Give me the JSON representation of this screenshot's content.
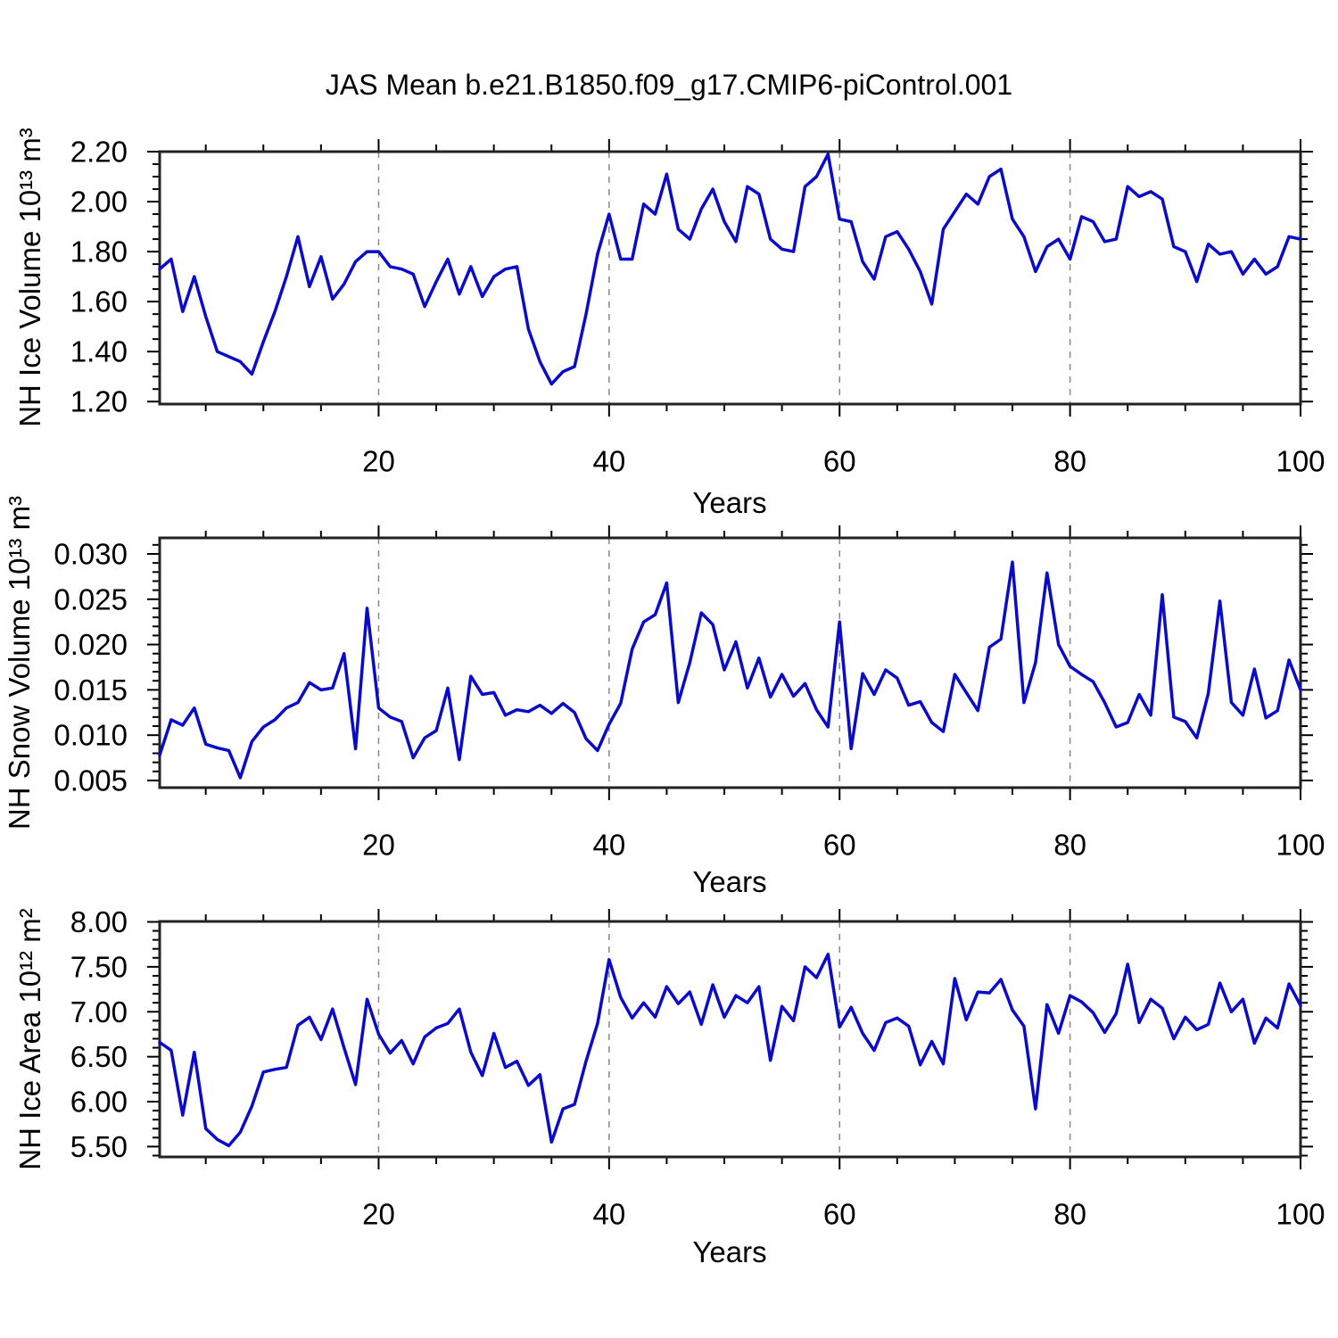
{
  "title": "JAS Mean b.e21.B1850.f09_g17.CMIP6-piControl.001",
  "line_color": "#0a0acd",
  "frame_color": "#222222",
  "gridline_color": "#888888",
  "chart_data": [
    {
      "id": "nh-ice-volume",
      "type": "line",
      "ylabel": "NH Ice Volume 10¹³ m³",
      "xlabel": "Years",
      "x": {
        "start": 1,
        "end": 100,
        "step": 1
      },
      "xlim": [
        1,
        100
      ],
      "ylim": [
        1.19,
        2.2
      ],
      "yticks": [
        1.2,
        1.4,
        1.6,
        1.8,
        2.0,
        2.2
      ],
      "ytick_labels": [
        "1.20",
        "1.40",
        "1.60",
        "1.80",
        "2.00",
        "2.20"
      ],
      "ytick_minor_step": 0.05,
      "xticks": [
        20,
        40,
        60,
        80,
        100
      ],
      "xtick_minor_step": 5,
      "gridlines_x": [
        20,
        40,
        60,
        80
      ],
      "grid": true,
      "legend": "none",
      "values": [
        1.73,
        1.77,
        1.56,
        1.7,
        1.54,
        1.4,
        1.38,
        1.36,
        1.31,
        1.44,
        1.56,
        1.7,
        1.86,
        1.66,
        1.78,
        1.61,
        1.67,
        1.76,
        1.8,
        1.8,
        1.74,
        1.73,
        1.71,
        1.58,
        1.68,
        1.77,
        1.63,
        1.74,
        1.62,
        1.7,
        1.73,
        1.74,
        1.49,
        1.36,
        1.27,
        1.32,
        1.34,
        1.55,
        1.79,
        1.95,
        1.77,
        1.77,
        1.99,
        1.95,
        2.11,
        1.89,
        1.85,
        1.97,
        2.05,
        1.92,
        1.84,
        2.06,
        2.03,
        1.85,
        1.81,
        1.8,
        2.06,
        2.1,
        2.19,
        1.93,
        1.92,
        1.76,
        1.69,
        1.86,
        1.88,
        1.81,
        1.72,
        1.59,
        1.89,
        1.96,
        2.03,
        1.99,
        2.1,
        2.13,
        1.93,
        1.86,
        1.72,
        1.82,
        1.85,
        1.77,
        1.94,
        1.92,
        1.84,
        1.85,
        2.06,
        2.02,
        2.04,
        2.01,
        1.82,
        1.8,
        1.68,
        1.83,
        1.79,
        1.8,
        1.71,
        1.77,
        1.71,
        1.74,
        1.86,
        1.85
      ]
    },
    {
      "id": "nh-snow-volume",
      "type": "line",
      "ylabel": "NH Snow Volume 10¹³ m³",
      "xlabel": "Years",
      "x": {
        "start": 1,
        "end": 100,
        "step": 1
      },
      "xlim": [
        1,
        100
      ],
      "ylim": [
        0.00421,
        0.03177
      ],
      "yticks": [
        0.005,
        0.01,
        0.015,
        0.02,
        0.025,
        0.03
      ],
      "ytick_labels": [
        "0.005",
        "0.010",
        "0.015",
        "0.020",
        "0.025",
        "0.030"
      ],
      "ytick_minor_step": 0.001,
      "xticks": [
        20,
        40,
        60,
        80,
        100
      ],
      "xtick_minor_step": 5,
      "gridlines_x": [
        20,
        40,
        60,
        80
      ],
      "grid": true,
      "legend": "none",
      "values": [
        0.0078,
        0.0117,
        0.0111,
        0.013,
        0.009,
        0.0086,
        0.0083,
        0.0053,
        0.0093,
        0.0109,
        0.0117,
        0.013,
        0.0136,
        0.0158,
        0.015,
        0.0152,
        0.019,
        0.0085,
        0.024,
        0.013,
        0.012,
        0.0115,
        0.0075,
        0.0097,
        0.0105,
        0.0152,
        0.0073,
        0.0165,
        0.0145,
        0.0147,
        0.0122,
        0.0128,
        0.0126,
        0.0133,
        0.0124,
        0.0135,
        0.0125,
        0.0096,
        0.0083,
        0.0112,
        0.0135,
        0.0195,
        0.0225,
        0.0233,
        0.0268,
        0.0136,
        0.018,
        0.0235,
        0.0222,
        0.0172,
        0.0203,
        0.0152,
        0.0185,
        0.0142,
        0.0167,
        0.0143,
        0.0157,
        0.0128,
        0.0109,
        0.0225,
        0.0085,
        0.0168,
        0.0145,
        0.0172,
        0.0163,
        0.0133,
        0.0137,
        0.0114,
        0.0104,
        0.0167,
        0.0147,
        0.0127,
        0.0197,
        0.0206,
        0.0291,
        0.0136,
        0.018,
        0.0279,
        0.02,
        0.0176,
        0.0167,
        0.0159,
        0.0136,
        0.0109,
        0.0114,
        0.0145,
        0.0122,
        0.0255,
        0.012,
        0.0115,
        0.0097,
        0.0146,
        0.0248,
        0.0136,
        0.0122,
        0.0173,
        0.0119,
        0.0127,
        0.0183,
        0.015
      ]
    },
    {
      "id": "nh-ice-area",
      "type": "line",
      "ylabel": "NH Ice Area 10¹² m²",
      "xlabel": "Years",
      "x": {
        "start": 1,
        "end": 100,
        "step": 1
      },
      "xlim": [
        1,
        100
      ],
      "ylim": [
        5.385,
        8.005
      ],
      "yticks": [
        5.5,
        6.0,
        6.5,
        7.0,
        7.5,
        8.0
      ],
      "ytick_labels": [
        "5.50",
        "6.00",
        "6.50",
        "7.00",
        "7.50",
        "8.00"
      ],
      "ytick_minor_step": 0.1,
      "xticks": [
        20,
        40,
        60,
        80,
        100
      ],
      "xtick_minor_step": 5,
      "gridlines_x": [
        20,
        40,
        60,
        80
      ],
      "grid": true,
      "legend": "none",
      "values": [
        6.66,
        6.57,
        5.85,
        6.55,
        5.7,
        5.58,
        5.51,
        5.66,
        5.95,
        6.33,
        6.36,
        6.38,
        6.85,
        6.94,
        6.69,
        7.03,
        6.6,
        6.19,
        7.14,
        6.75,
        6.54,
        6.68,
        6.42,
        6.72,
        6.82,
        6.87,
        7.03,
        6.55,
        6.29,
        6.76,
        6.38,
        6.45,
        6.18,
        6.3,
        5.55,
        5.92,
        5.97,
        6.45,
        6.87,
        7.58,
        7.16,
        6.93,
        7.1,
        6.94,
        7.28,
        7.09,
        7.22,
        6.86,
        7.3,
        6.94,
        7.18,
        7.1,
        7.28,
        6.46,
        7.06,
        6.9,
        7.5,
        7.38,
        7.64,
        6.83,
        7.05,
        6.76,
        6.57,
        6.88,
        6.93,
        6.84,
        6.41,
        6.67,
        6.42,
        7.37,
        6.91,
        7.22,
        7.21,
        7.36,
        7.02,
        6.84,
        5.92,
        7.08,
        6.76,
        7.18,
        7.11,
        6.99,
        6.77,
        6.98,
        7.53,
        6.88,
        7.14,
        7.04,
        6.7,
        6.94,
        6.8,
        6.86,
        7.32,
        7.0,
        7.14,
        6.65,
        6.93,
        6.82,
        7.31,
        7.07
      ]
    }
  ]
}
